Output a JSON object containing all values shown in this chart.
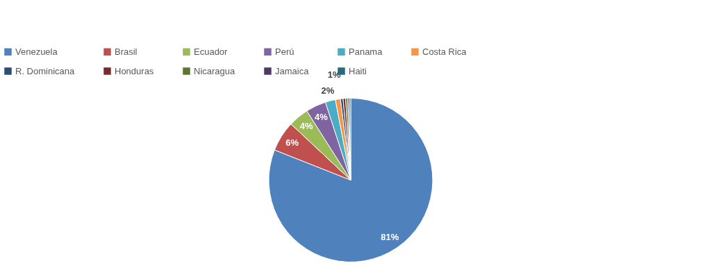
{
  "chart_data": {
    "type": "pie",
    "categories": [
      "Venezuela",
      "Brasil",
      "Ecuador",
      "Perú",
      "Panama",
      "Costa Rica",
      "R. Dominicana",
      "Honduras",
      "Nicaragua",
      "Jamaica",
      "Haiti"
    ],
    "values": [
      81,
      6,
      4,
      4,
      2,
      1,
      0.5,
      0.5,
      0.4,
      0.3,
      0.3
    ],
    "value_labels": [
      "81%",
      "6%",
      "4%",
      "4%",
      "2%",
      "1%",
      null,
      null,
      null,
      null,
      null
    ],
    "colors": [
      "#4f81bd",
      "#c0504d",
      "#9bbb59",
      "#8064a2",
      "#4bacc6",
      "#f79646",
      "#2c4d75",
      "#772c2a",
      "#5f7530",
      "#4d3b62",
      "#276a7c"
    ],
    "legend": "top"
  }
}
